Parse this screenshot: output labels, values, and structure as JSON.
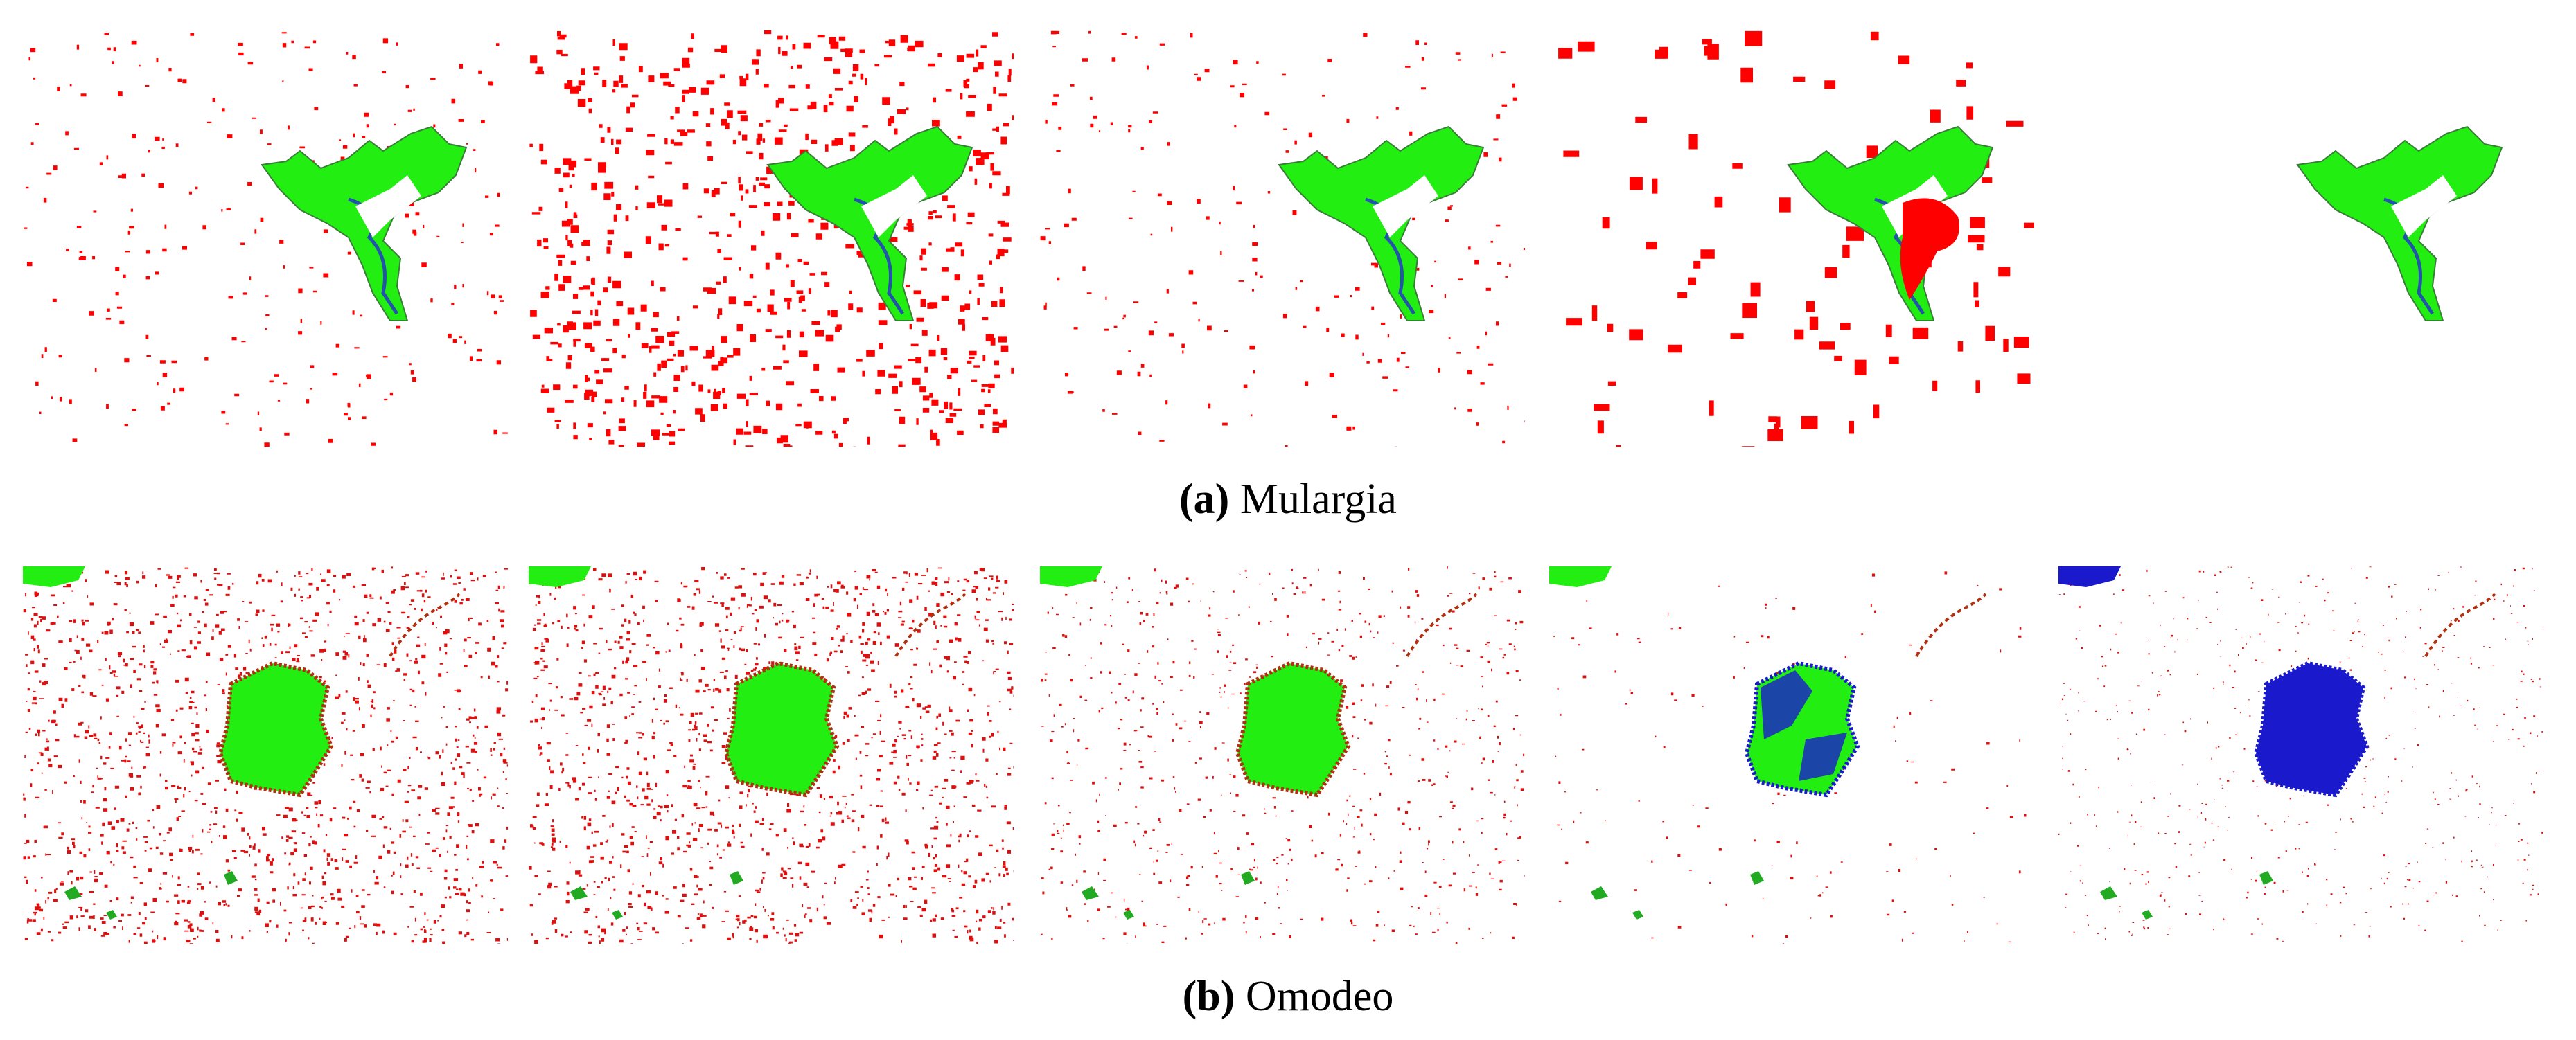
{
  "figure": {
    "captions": [
      {
        "label": "(a)",
        "text": "Mulargia"
      },
      {
        "label": "(b)",
        "text": "Omodeo"
      }
    ]
  }
}
